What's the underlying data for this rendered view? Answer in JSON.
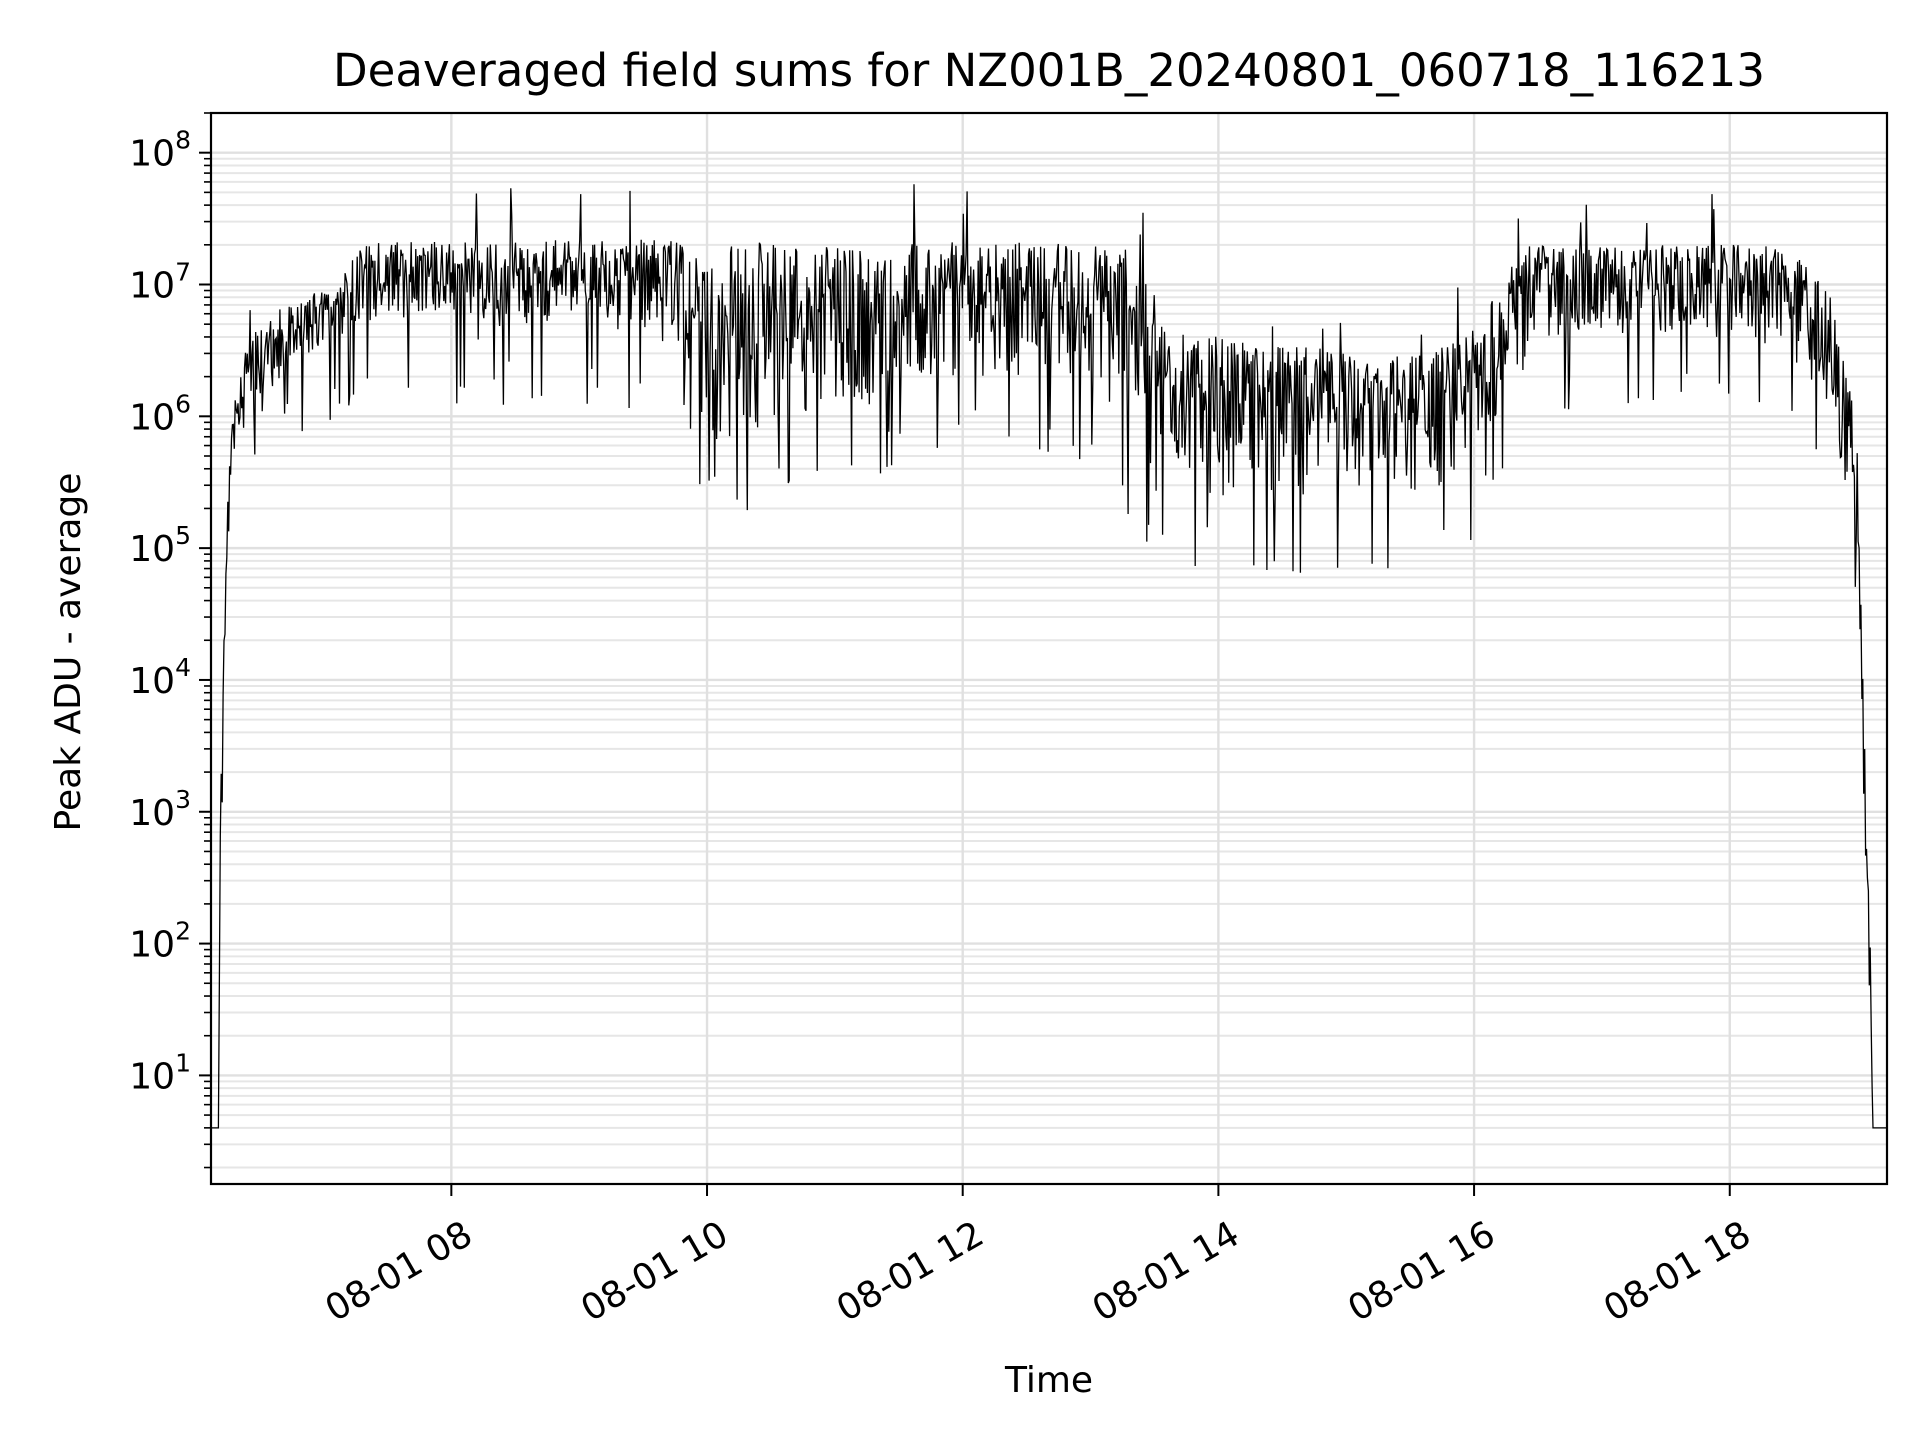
{
  "chart_data": {
    "type": "line",
    "title": "Deaveraged field sums for NZ001B_20240801_060718_116213",
    "xlabel": "Time",
    "ylabel": "Peak ADU - average",
    "yscale": "log",
    "grid": true,
    "x_range": [
      "08-01 06:07",
      "08-01 19:14"
    ],
    "ylim": [
      1.5,
      200000000
    ],
    "xticks": [
      "08-01 08",
      "08-01 10",
      "08-01 12",
      "08-01 14",
      "08-01 16",
      "08-01 18"
    ],
    "xtick_hours": [
      8,
      10,
      12,
      14,
      16,
      18
    ],
    "yticks": [
      {
        "base": "10",
        "exp": "1",
        "value": 10
      },
      {
        "base": "10",
        "exp": "2",
        "value": 100
      },
      {
        "base": "10",
        "exp": "3",
        "value": 1000
      },
      {
        "base": "10",
        "exp": "4",
        "value": 10000
      },
      {
        "base": "10",
        "exp": "5",
        "value": 100000
      },
      {
        "base": "10",
        "exp": "6",
        "value": 1000000
      },
      {
        "base": "10",
        "exp": "7",
        "value": 10000000
      },
      {
        "base": "10",
        "exp": "8",
        "value": 100000000
      }
    ],
    "series": [
      {
        "color": "#000000",
        "x_hours": [
          6.12,
          6.18,
          6.19,
          6.21,
          6.25,
          6.3,
          6.35,
          6.4,
          6.5,
          6.6,
          6.75,
          6.9,
          7.1,
          7.25,
          7.3,
          7.5,
          7.75,
          8.0,
          8.25,
          8.5,
          8.75,
          9.0,
          9.25,
          9.5,
          9.75,
          9.9,
          10.0,
          10.1,
          10.25,
          10.5,
          10.75,
          11.0,
          11.25,
          11.5,
          11.75,
          12.0,
          12.25,
          12.5,
          12.75,
          13.0,
          13.25,
          13.4,
          13.5,
          13.6,
          13.75,
          14.0,
          14.25,
          14.5,
          14.75,
          15.0,
          15.25,
          15.5,
          15.75,
          15.95,
          16.0,
          16.2,
          16.4,
          16.5,
          16.6,
          16.75,
          17.0,
          17.25,
          17.5,
          17.75,
          18.0,
          18.25,
          18.4,
          18.6,
          18.8,
          18.9,
          19.0,
          19.05,
          19.1,
          19.12,
          19.14,
          19.18
        ],
        "y_low": [
          4,
          4,
          400,
          4000,
          100000,
          500000,
          700000,
          900000,
          1000000,
          1500000,
          2500000,
          3000000,
          3500000,
          4000000,
          5000000,
          6000000,
          5000000,
          5000000,
          3500000,
          5000000,
          5000000,
          5000000,
          4500000,
          4000000,
          3000000,
          1500000,
          800000,
          600000,
          600000,
          800000,
          1000000,
          1100000,
          1200000,
          1500000,
          1800000,
          2000000,
          2000000,
          2000000,
          2000000,
          1800000,
          800000,
          400000,
          250000,
          250000,
          300000,
          250000,
          250000,
          250000,
          250000,
          260000,
          260000,
          260000,
          300000,
          300000,
          500000,
          1000000,
          2000000,
          4000000,
          4000000,
          4000000,
          3500000,
          4000000,
          4000000,
          4000000,
          4000000,
          3500000,
          3000000,
          2000000,
          1000000,
          300000,
          100000,
          1000,
          20,
          4,
          4,
          4
        ],
        "y_high": [
          4,
          4,
          500,
          8000,
          250000,
          1500000,
          2500000,
          3500000,
          5000000,
          6000000,
          7500000,
          8500000,
          9000000,
          18000000,
          20000000,
          21000000,
          21000000,
          22000000,
          21000000,
          21000000,
          22000000,
          22000000,
          22000000,
          22000000,
          22000000,
          22000000,
          21000000,
          21000000,
          21000000,
          21000000,
          21000000,
          21000000,
          21000000,
          21000000,
          21000000,
          21000000,
          21000000,
          21000000,
          21000000,
          21000000,
          20000000,
          15000000,
          6000000,
          5000000,
          5000000,
          4000000,
          3500000,
          3500000,
          3500000,
          3000000,
          3000000,
          3000000,
          3500000,
          4000000,
          5000000,
          10000000,
          20000000,
          20000000,
          20000000,
          20000000,
          20000000,
          20000000,
          20000000,
          20000000,
          20000000,
          20000000,
          18000000,
          15000000,
          8000000,
          3000000,
          1000000,
          10000,
          100,
          4,
          4,
          4
        ]
      }
    ]
  }
}
